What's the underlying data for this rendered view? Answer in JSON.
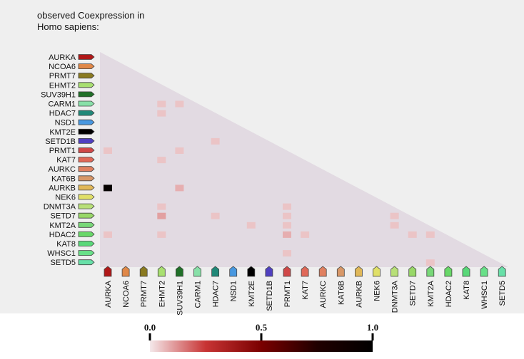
{
  "chart_data": {
    "type": "coexpression-matrix",
    "title": [
      "observed Coexpression in",
      "Homo sapiens:"
    ],
    "genes": [
      "AURKA",
      "NCOA6",
      "PRMT7",
      "EHMT2",
      "SUV39H1",
      "CARM1",
      "HDAC7",
      "NSD1",
      "KMT2E",
      "SETD1B",
      "PRMT1",
      "KAT7",
      "AURKC",
      "KAT6B",
      "AURKB",
      "NEK6",
      "DNMT3A",
      "SETD7",
      "KMT2A",
      "HDAC2",
      "KAT8",
      "WHSC1",
      "SETD5"
    ],
    "colors": [
      "#b01818",
      "#e08848",
      "#8a7a20",
      "#a8e070",
      "#207028",
      "#88e0a8",
      "#208878",
      "#4898e0",
      "#000000",
      "#5040c0",
      "#d04848",
      "#e06858",
      "#e08060",
      "#d89868",
      "#e0b858",
      "#e0e068",
      "#b8e078",
      "#98d868",
      "#78d878",
      "#68d868",
      "#58d878",
      "#68e088",
      "#68e0a8"
    ],
    "cells": [
      {
        "row": 5,
        "col": 3,
        "value": 0.05
      },
      {
        "row": 5,
        "col": 4,
        "value": 0.05
      },
      {
        "row": 6,
        "col": 3,
        "value": 0.05
      },
      {
        "row": 9,
        "col": 6,
        "value": 0.05
      },
      {
        "row": 10,
        "col": 0,
        "value": 0.05
      },
      {
        "row": 10,
        "col": 4,
        "value": 0.05
      },
      {
        "row": 11,
        "col": 3,
        "value": 0.05
      },
      {
        "row": 14,
        "col": 0,
        "value": 0.95
      },
      {
        "row": 14,
        "col": 4,
        "value": 0.08
      },
      {
        "row": 16,
        "col": 3,
        "value": 0.05
      },
      {
        "row": 16,
        "col": 10,
        "value": 0.05
      },
      {
        "row": 17,
        "col": 3,
        "value": 0.1
      },
      {
        "row": 17,
        "col": 6,
        "value": 0.05
      },
      {
        "row": 17,
        "col": 10,
        "value": 0.05
      },
      {
        "row": 17,
        "col": 16,
        "value": 0.05
      },
      {
        "row": 18,
        "col": 8,
        "value": 0.05
      },
      {
        "row": 18,
        "col": 10,
        "value": 0.05
      },
      {
        "row": 18,
        "col": 16,
        "value": 0.05
      },
      {
        "row": 19,
        "col": 0,
        "value": 0.05
      },
      {
        "row": 19,
        "col": 3,
        "value": 0.05
      },
      {
        "row": 19,
        "col": 10,
        "value": 0.08
      },
      {
        "row": 19,
        "col": 11,
        "value": 0.05
      },
      {
        "row": 19,
        "col": 17,
        "value": 0.05
      },
      {
        "row": 19,
        "col": 18,
        "value": 0.05
      },
      {
        "row": 21,
        "col": 10,
        "value": 0.05
      },
      {
        "row": 22,
        "col": 18,
        "value": 0.05
      }
    ],
    "colorscale": [
      [
        0,
        "#f4e8ea"
      ],
      [
        0.25,
        "#c83434"
      ],
      [
        0.5,
        "#7a0000"
      ],
      [
        0.75,
        "#200000"
      ],
      [
        1,
        "#000000"
      ]
    ],
    "cbar_lim": [
      0,
      1
    ],
    "cbar_ticks": [
      {
        "value": 0,
        "label": "0.0"
      },
      {
        "value": 0.5,
        "label": "0.5"
      },
      {
        "value": 1,
        "label": "1.0"
      }
    ]
  }
}
